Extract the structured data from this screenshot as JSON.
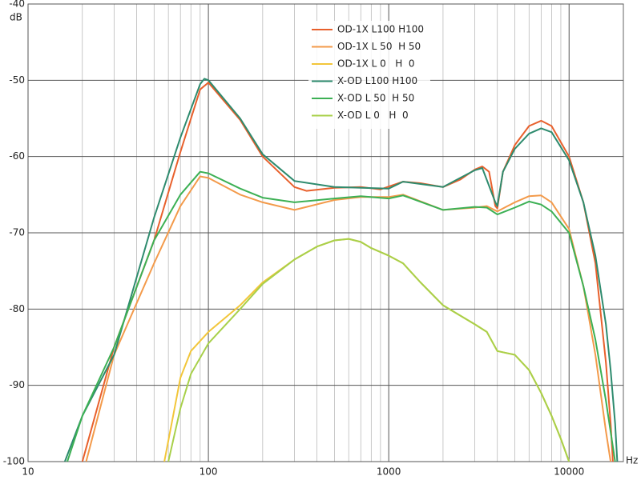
{
  "chart_data": {
    "type": "line",
    "ylabel": "dB",
    "xlabel": "Hz",
    "xscale": "log",
    "grid": true,
    "legend": "top",
    "xlim": [
      10,
      20000
    ],
    "ylim": [
      -100,
      -40
    ],
    "xticks": [
      10,
      100,
      1000,
      10000
    ],
    "xminorticks": [
      20,
      30,
      40,
      50,
      60,
      70,
      80,
      90,
      200,
      300,
      400,
      500,
      600,
      700,
      800,
      900,
      2000,
      3000,
      4000,
      5000,
      6000,
      7000,
      8000,
      9000
    ],
    "yticks": [
      -40,
      -50,
      -60,
      -70,
      -80,
      -90,
      -100
    ],
    "series": [
      {
        "name": "OD-1X L100 H100",
        "color": "#e8602c",
        "x": [
          20,
          30,
          50,
          70,
          90,
          100,
          150,
          200,
          300,
          350,
          500,
          700,
          900,
          1200,
          1500,
          2000,
          2500,
          3000,
          3300,
          3600,
          3900,
          4000,
          4300,
          5000,
          6000,
          7000,
          8000,
          10000,
          12000,
          14000,
          16000,
          17000,
          17500
        ],
        "values": [
          -100,
          -85,
          -71,
          -59.4,
          -51.2,
          -50.3,
          -55.2,
          -60,
          -64,
          -64.5,
          -64.1,
          -64,
          -64.3,
          -63.3,
          -63.5,
          -64,
          -63,
          -61.7,
          -61.3,
          -62,
          -66.5,
          -66.8,
          -62,
          -58.5,
          -56,
          -55.3,
          -56,
          -60,
          -66,
          -74,
          -87,
          -95,
          -100
        ]
      },
      {
        "name": "OD-1X L 50  H 50",
        "color": "#f39a4a",
        "x": [
          21,
          30,
          50,
          70,
          90,
          100,
          150,
          200,
          300,
          500,
          700,
          1000,
          1200,
          2000,
          3000,
          3500,
          4000,
          5000,
          6000,
          7000,
          8000,
          10000,
          12000,
          14000,
          16000,
          17000
        ],
        "values": [
          -100,
          -86,
          -74,
          -66.5,
          -62.6,
          -62.8,
          -65,
          -66,
          -67,
          -65.7,
          -65.3,
          -65.3,
          -65,
          -67,
          -66.7,
          -66.5,
          -67.2,
          -66,
          -65.2,
          -65.1,
          -66,
          -69.5,
          -77,
          -86,
          -96,
          -100
        ]
      },
      {
        "name": "OD-1X L 0   H  0",
        "color": "#f2c63a",
        "x": [
          57,
          70,
          80,
          100,
          150,
          200,
          300,
          400,
          500,
          600,
          700,
          800,
          1000,
          1200,
          1500,
          2000,
          3000,
          3500,
          4000,
          5000,
          6000,
          7000,
          8000,
          9000,
          10000
        ],
        "values": [
          -100,
          -89,
          -85.5,
          -83,
          -79.5,
          -76.5,
          -73.5,
          -71.8,
          -71,
          -70.8,
          -71.2,
          -72,
          -73,
          -74,
          -76.5,
          -79.5,
          -82,
          -83,
          -85.5,
          -86,
          -88,
          -91,
          -94,
          -97,
          -100
        ]
      },
      {
        "name": "X-OD L100 H100",
        "color": "#2e8b6e",
        "x": [
          16,
          20,
          30,
          50,
          70,
          90,
          95,
          100,
          150,
          200,
          300,
          500,
          1000,
          1200,
          2000,
          3000,
          3300,
          3900,
          4000,
          4300,
          5000,
          6000,
          7000,
          8000,
          10000,
          12000,
          14000,
          16000,
          17000,
          18000,
          18500
        ],
        "values": [
          -100,
          -94,
          -86,
          -68,
          -57.5,
          -50.5,
          -49.8,
          -50,
          -55,
          -59.7,
          -63.2,
          -64,
          -64.2,
          -63.3,
          -64,
          -61.8,
          -61.5,
          -66,
          -66.5,
          -62,
          -59,
          -57,
          -56.3,
          -56.8,
          -60.5,
          -66,
          -73,
          -82,
          -88,
          -95,
          -100
        ]
      },
      {
        "name": "X-OD L 50  H 50",
        "color": "#3cb054",
        "x": [
          16.5,
          20,
          30,
          50,
          70,
          90,
          100,
          150,
          200,
          300,
          500,
          700,
          1000,
          1200,
          2000,
          3000,
          3500,
          4000,
          5000,
          6000,
          7000,
          8000,
          10000,
          12000,
          14000,
          16000,
          18000
        ],
        "values": [
          -100,
          -94,
          -85,
          -71,
          -65,
          -62,
          -62.2,
          -64.2,
          -65.4,
          -66,
          -65.5,
          -65.2,
          -65.5,
          -65.1,
          -67,
          -66.6,
          -66.7,
          -67.6,
          -66.7,
          -65.9,
          -66.3,
          -67.2,
          -70,
          -77,
          -84,
          -92,
          -100
        ]
      },
      {
        "name": "X-OD L 0   H  0",
        "color": "#a8d04a",
        "x": [
          60,
          70,
          80,
          100,
          150,
          200,
          300,
          400,
          500,
          600,
          700,
          800,
          1000,
          1200,
          1500,
          2000,
          3000,
          3500,
          4000,
          5000,
          6000,
          7000,
          8000,
          9000,
          10000
        ],
        "values": [
          -100,
          -93,
          -88.5,
          -84.5,
          -80,
          -76.7,
          -73.5,
          -71.8,
          -71,
          -70.8,
          -71.2,
          -72,
          -73,
          -74,
          -76.5,
          -79.5,
          -82,
          -83,
          -85.5,
          -86,
          -88,
          -91,
          -94,
          -97,
          -100
        ]
      }
    ]
  }
}
